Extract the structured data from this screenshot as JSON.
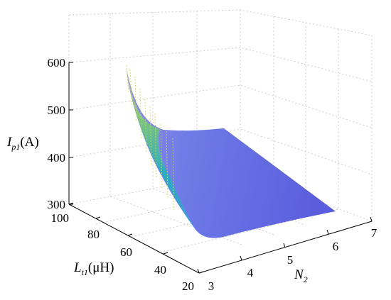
{
  "chart_data": {
    "type": "surface",
    "z_axis": {
      "label": {
        "main": "I",
        "sub": "p1",
        "unit": "(A)"
      },
      "ticks": [
        "600",
        "500",
        "400",
        "300"
      ],
      "values": [
        600,
        500,
        400,
        300
      ],
      "range": [
        300,
        600
      ]
    },
    "y_axis": {
      "label": {
        "main": "L",
        "sub": "t1",
        "unit": "(μH)"
      },
      "ticks": [
        "100",
        "80",
        "60",
        "40",
        "20"
      ],
      "values": [
        100,
        80,
        60,
        40,
        20
      ],
      "range": [
        20,
        100
      ]
    },
    "x_axis": {
      "label": {
        "main": "N",
        "sub": "2",
        "unit": ""
      },
      "ticks": [
        "3",
        "4",
        "5",
        "6",
        "7"
      ],
      "values": [
        3,
        4,
        5,
        6,
        7
      ],
      "range": [
        3,
        7
      ]
    },
    "grid": true,
    "colormap": "parula",
    "colors": {
      "low": "#5a5de0",
      "mid": "#2fa9c8",
      "high": "#e8e03a"
    },
    "surface_samples": [
      {
        "N2": 3,
        "Lt1": 20,
        "Ip1": 330
      },
      {
        "N2": 3,
        "Lt1": 100,
        "Ip1": 590
      },
      {
        "N2": 7,
        "Lt1": 100,
        "Ip1": 455
      },
      {
        "N2": 7,
        "Lt1": 20,
        "Ip1": 305
      }
    ]
  }
}
